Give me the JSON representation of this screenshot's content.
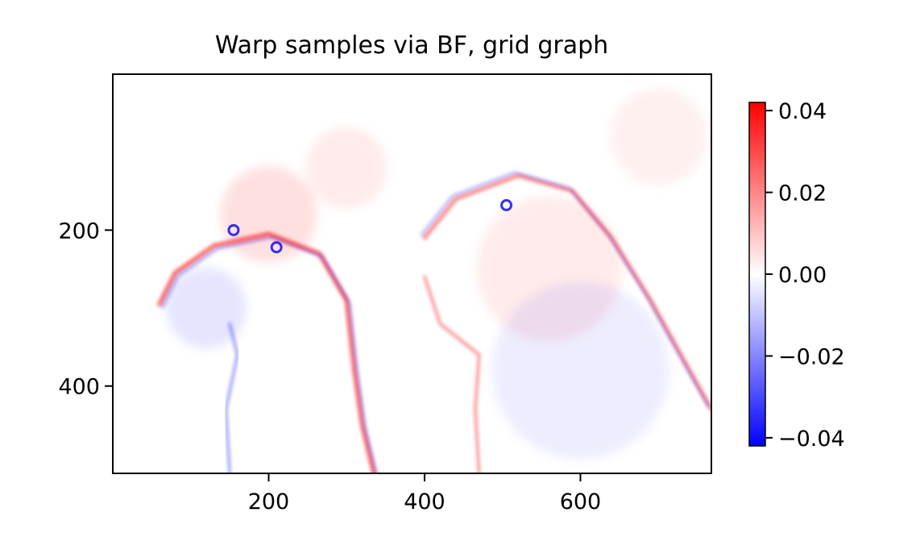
{
  "chart_data": {
    "type": "heatmap",
    "title": "Warp samples via BF, grid graph",
    "xlabel": "",
    "ylabel": "",
    "x_range": [
      0,
      768
    ],
    "y_range": [
      512,
      0
    ],
    "x_ticks": [
      200,
      400,
      600
    ],
    "x_tick_labels": [
      "200",
      "400",
      "600"
    ],
    "y_ticks": [
      200,
      400
    ],
    "y_tick_labels": [
      "200",
      "400"
    ],
    "grid": false,
    "colormap": "bwr",
    "colorbar": {
      "range": [
        -0.042,
        0.042
      ],
      "ticks": [
        0.04,
        0.02,
        0.0,
        -0.02,
        -0.04
      ],
      "tick_labels": [
        "0.04",
        "0.02",
        "0.00",
        "−0.02",
        "−0.04"
      ]
    },
    "colors": {
      "negative": "#0000ff",
      "zero": "#ffffff",
      "positive": "#ff0000"
    },
    "description_features": {
      "left_parrot_outline": [
        [
          60,
          295
        ],
        [
          80,
          255
        ],
        [
          130,
          220
        ],
        [
          200,
          205
        ],
        [
          265,
          230
        ],
        [
          300,
          290
        ],
        [
          310,
          380
        ],
        [
          320,
          450
        ],
        [
          335,
          512
        ]
      ],
      "left_parrot_back": [
        [
          150,
          512
        ],
        [
          145,
          430
        ],
        [
          160,
          360
        ],
        [
          150,
          320
        ]
      ],
      "right_parrot_outline": [
        [
          400,
          210
        ],
        [
          440,
          160
        ],
        [
          520,
          130
        ],
        [
          590,
          150
        ],
        [
          640,
          210
        ],
        [
          690,
          290
        ],
        [
          740,
          380
        ],
        [
          768,
          430
        ]
      ],
      "right_parrot_front": [
        [
          470,
          512
        ],
        [
          465,
          430
        ],
        [
          470,
          360
        ],
        [
          420,
          320
        ],
        [
          400,
          260
        ]
      ]
    }
  }
}
